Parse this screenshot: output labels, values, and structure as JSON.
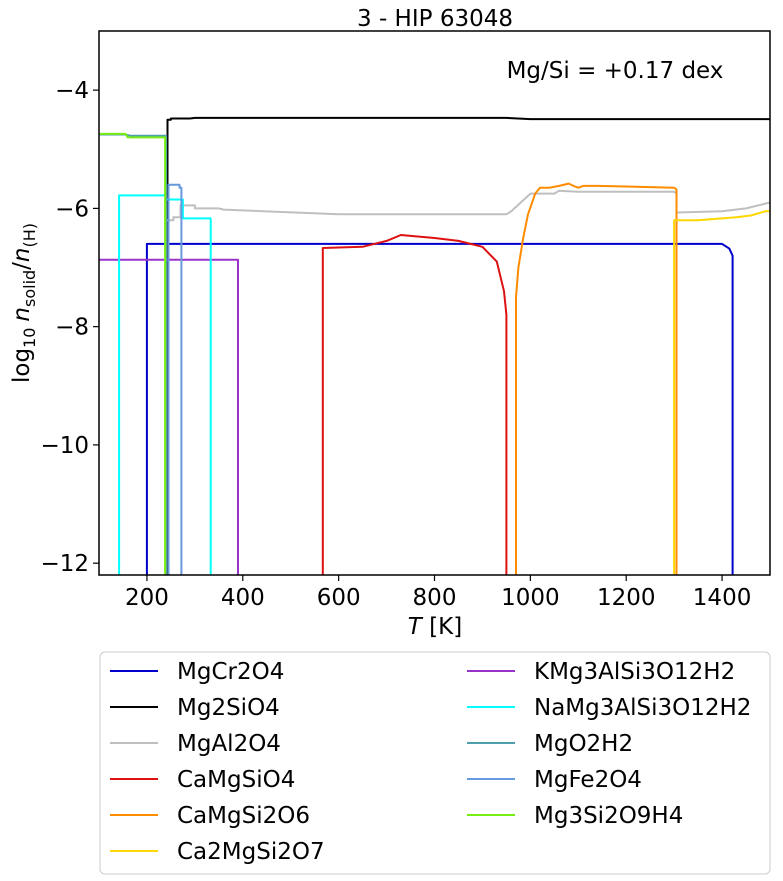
{
  "chart_data": {
    "type": "line",
    "title": "3 - HIP 63048",
    "annotation": "Mg/Si = +0.17 dex",
    "xlabel_main": "T",
    "xlabel_unit": " [K]",
    "ylabel_prefix": "log",
    "ylabel_sub10": "10",
    "ylabel_n1": "n",
    "ylabel_sub1": "solid",
    "ylabel_slash": "/",
    "ylabel_n2": "n",
    "ylabel_sub2": "(H)",
    "xlim": [
      100,
      1500
    ],
    "ylim": [
      -12.2,
      -3.0
    ],
    "xticks": [
      200,
      400,
      600,
      800,
      1000,
      1200,
      1400
    ],
    "xtick_labels": [
      "200",
      "400",
      "600",
      "800",
      "1000",
      "1200",
      "1400"
    ],
    "yticks": [
      -4,
      -6,
      -8,
      -10,
      -12
    ],
    "ytick_labels": [
      "−4",
      "−6",
      "−8",
      "−10",
      "−12"
    ],
    "grid": false,
    "legend_position": "below",
    "series": [
      {
        "name": "MgCr2O4",
        "color": "#0000cc",
        "x": [
          200,
          200,
          1400,
          1415,
          1422,
          1422
        ],
        "y": [
          -12.2,
          -6.6,
          -6.6,
          -6.68,
          -6.8,
          -12.2
        ]
      },
      {
        "name": "Mg2SiO4",
        "color": "#000000",
        "x": [
          243,
          243,
          250,
          250,
          290,
          300,
          900,
          950,
          1000,
          1050,
          1500
        ],
        "y": [
          -12.2,
          -4.5,
          -4.5,
          -4.48,
          -4.48,
          -4.47,
          -4.47,
          -4.47,
          -4.49,
          -4.49,
          -4.49
        ]
      },
      {
        "name": "MgAl2O4",
        "color": "#bfbfbf",
        "x": [
          240,
          240,
          255,
          255,
          270,
          270,
          300,
          300,
          350,
          360,
          600,
          800,
          950,
          960,
          980,
          1000,
          1050,
          1060,
          1100,
          1300,
          1305,
          1305,
          1400,
          1450,
          1500
        ],
        "y": [
          -12.2,
          -6.2,
          -6.2,
          -6.15,
          -6.15,
          -5.95,
          -5.95,
          -6.0,
          -6.0,
          -6.02,
          -6.1,
          -6.1,
          -6.1,
          -6.05,
          -5.9,
          -5.75,
          -5.75,
          -5.7,
          -5.72,
          -5.72,
          -5.75,
          -6.07,
          -6.05,
          -6.0,
          -5.9
        ]
      },
      {
        "name": "CaMgSiO4",
        "color": "#dd1111",
        "x": [
          567,
          567,
          650,
          700,
          730,
          800,
          850,
          900,
          930,
          945,
          950,
          950
        ],
        "y": [
          -12.2,
          -6.67,
          -6.65,
          -6.55,
          -6.45,
          -6.5,
          -6.55,
          -6.65,
          -6.9,
          -7.4,
          -7.8,
          -12.2
        ]
      },
      {
        "name": "CaMgSi2O6",
        "color": "#ff8c00",
        "x": [
          970,
          970,
          975,
          985,
          995,
          1010,
          1020,
          1040,
          1060,
          1080,
          1090,
          1100,
          1110,
          1140,
          1300,
          1305,
          1305
        ],
        "y": [
          -12.2,
          -7.5,
          -7.0,
          -6.5,
          -6.1,
          -5.75,
          -5.65,
          -5.65,
          -5.62,
          -5.58,
          -5.62,
          -5.65,
          -5.62,
          -5.62,
          -5.65,
          -5.68,
          -12.2
        ]
      },
      {
        "name": "Ca2MgSi2O7",
        "color": "#ffd700",
        "x": [
          1300,
          1300,
          1350,
          1400,
          1430,
          1460,
          1490,
          1500
        ],
        "y": [
          -12.2,
          -6.2,
          -6.2,
          -6.17,
          -6.15,
          -6.12,
          -6.05,
          -6.05
        ]
      },
      {
        "name": "KMg3AlSi3O12H2",
        "color": "#9933cc",
        "x": [
          100,
          390,
          390
        ],
        "y": [
          -6.87,
          -6.87,
          -12.2
        ]
      },
      {
        "name": "NaMg3AlSi3O12H2",
        "color": "#00ffff",
        "x": [
          142,
          142,
          240,
          240,
          275,
          275,
          333,
          333
        ],
        "y": [
          -12.2,
          -5.78,
          -5.78,
          -5.85,
          -5.85,
          -6.17,
          -6.17,
          -12.2
        ]
      },
      {
        "name": "MgO2H2",
        "color": "#4f9fa8",
        "x": [
          100,
          155,
          165,
          240,
          240
        ],
        "y": [
          -4.75,
          -4.75,
          -4.77,
          -4.77,
          -12.2
        ]
      },
      {
        "name": "MgFe2O4",
        "color": "#6699dd",
        "x": [
          245,
          245,
          268,
          268,
          272,
          272
        ],
        "y": [
          -12.2,
          -5.6,
          -5.6,
          -5.65,
          -5.65,
          -12.2
        ]
      },
      {
        "name": "Mg3Si2O9H4",
        "color": "#77ee11",
        "x": [
          100,
          155,
          160,
          238,
          238
        ],
        "y": [
          -4.74,
          -4.74,
          -4.8,
          -4.8,
          -12.2
        ]
      }
    ],
    "legend_columns": [
      [
        "MgCr2O4",
        "Mg2SiO4",
        "MgAl2O4",
        "CaMgSiO4",
        "CaMgSi2O6",
        "Ca2MgSi2O7"
      ],
      [
        "KMg3AlSi3O12H2",
        "NaMg3AlSi3O12H2",
        "MgO2H2",
        "MgFe2O4",
        "Mg3Si2O9H4"
      ]
    ]
  }
}
